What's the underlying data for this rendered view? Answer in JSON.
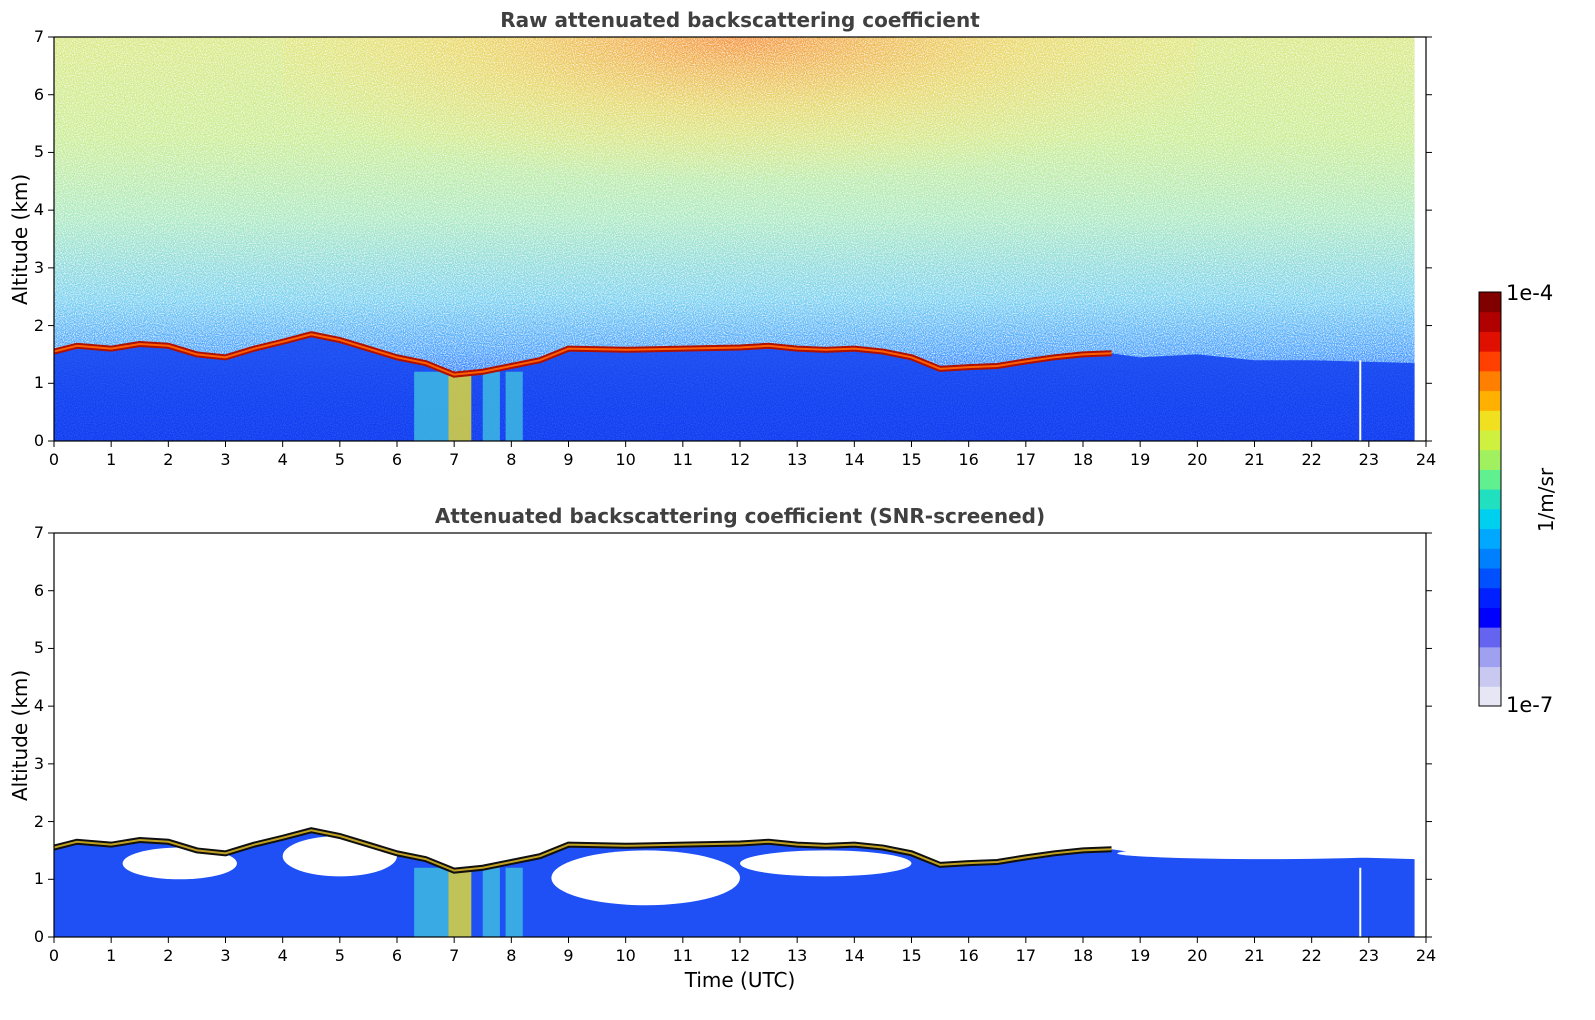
{
  "chart_data": [
    {
      "type": "heatmap",
      "title": "Raw attenuated backscattering coefficient",
      "xlabel": "",
      "ylabel": "Altitude (km)",
      "xlim": [
        0,
        24
      ],
      "ylim": [
        0,
        7
      ],
      "xticks": [
        "0",
        "1",
        "2",
        "3",
        "4",
        "5",
        "6",
        "7",
        "8",
        "9",
        "10",
        "11",
        "12",
        "13",
        "14",
        "15",
        "16",
        "17",
        "18",
        "19",
        "20",
        "21",
        "22",
        "23",
        "24"
      ],
      "yticks": [
        "0",
        "1",
        "2",
        "3",
        "4",
        "5",
        "6",
        "7"
      ],
      "grid": false,
      "layer_top_km": {
        "x": [
          0,
          0.4,
          1,
          1.5,
          2,
          2.5,
          3,
          3.5,
          4,
          4.5,
          5,
          5.5,
          6,
          6.5,
          7,
          7.5,
          8,
          8.5,
          9,
          10,
          11,
          12,
          12.5,
          13,
          13.5,
          14,
          14.5,
          15,
          15.5,
          16,
          16.5,
          17,
          17.5,
          18,
          18.5
        ],
        "y": [
          1.55,
          1.65,
          1.6,
          1.68,
          1.65,
          1.5,
          1.45,
          1.6,
          1.72,
          1.85,
          1.75,
          1.6,
          1.45,
          1.35,
          1.15,
          1.2,
          1.3,
          1.4,
          1.6,
          1.58,
          1.6,
          1.62,
          1.65,
          1.6,
          1.58,
          1.6,
          1.55,
          1.45,
          1.25,
          1.28,
          1.3,
          1.38,
          1.45,
          1.5,
          1.52
        ]
      },
      "description_values": "noisy background increasing with altitude, dense layer below boundary"
    },
    {
      "type": "heatmap",
      "title": "Attenuated backscattering coefficient (SNR-screened)",
      "xlabel": "Time (UTC)",
      "ylabel": "Altitude (km)",
      "xlim": [
        0,
        24
      ],
      "ylim": [
        0,
        7
      ],
      "xticks": [
        "0",
        "1",
        "2",
        "3",
        "4",
        "5",
        "6",
        "7",
        "8",
        "9",
        "10",
        "11",
        "12",
        "13",
        "14",
        "15",
        "16",
        "17",
        "18",
        "19",
        "20",
        "21",
        "22",
        "23",
        "24"
      ],
      "yticks": [
        "0",
        "1",
        "2",
        "3",
        "4",
        "5",
        "6",
        "7"
      ],
      "grid": false
    }
  ],
  "colorbar": {
    "label": "1/m/sr",
    "max_label": "1e-4",
    "min_label": "1e-7",
    "colors": [
      "#e6e6f5",
      "#c8c8f0",
      "#a0a0f0",
      "#6464f0",
      "#0000ff",
      "#0020ff",
      "#0050ff",
      "#0080ff",
      "#00a8ff",
      "#00d0f0",
      "#20e0c0",
      "#60f090",
      "#a0f060",
      "#d0f040",
      "#f0e020",
      "#ffb000",
      "#ff8000",
      "#ff4000",
      "#e01000",
      "#b00000",
      "#800000"
    ]
  }
}
